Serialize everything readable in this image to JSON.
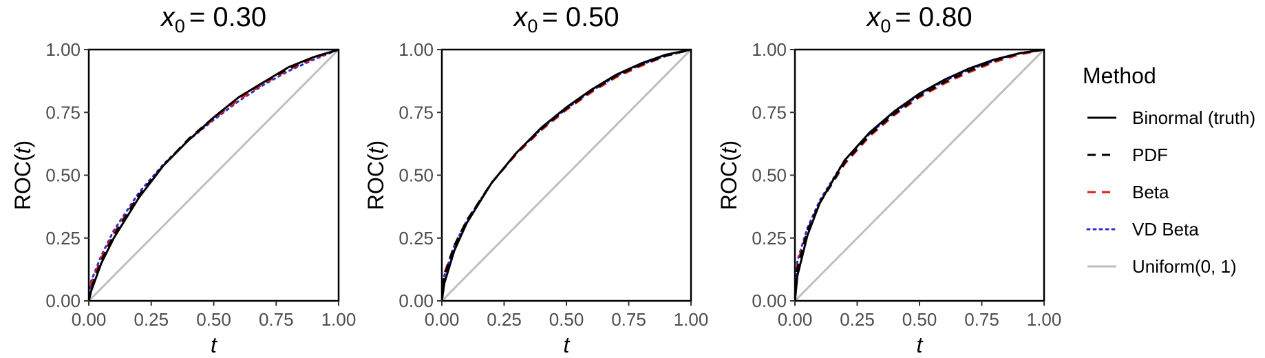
{
  "chart_data": [
    {
      "type": "line",
      "title_var": "x",
      "title_sub": "0",
      "title_value": "= 0.30",
      "xlabel": "t",
      "ylabel_prefix": "ROC(",
      "ylabel_var": "t",
      "ylabel_suffix": ")",
      "xlim": [
        0,
        1
      ],
      "ylim": [
        0,
        1
      ],
      "xticks": [
        "0.00",
        "0.25",
        "0.50",
        "0.75",
        "1.00"
      ],
      "yticks": [
        "0.00",
        "0.25",
        "0.50",
        "0.75",
        "1.00"
      ],
      "grid": false,
      "x": [
        0,
        0.01,
        0.05,
        0.1,
        0.2,
        0.3,
        0.4,
        0.5,
        0.6,
        0.7,
        0.8,
        0.9,
        1.0
      ],
      "series": [
        {
          "name": "Binormal (truth)",
          "values": [
            0,
            0.04,
            0.15,
            0.25,
            0.41,
            0.54,
            0.64,
            0.73,
            0.81,
            0.87,
            0.93,
            0.97,
            1.0
          ]
        },
        {
          "name": "PDF",
          "values": [
            0,
            0.05,
            0.16,
            0.26,
            0.42,
            0.54,
            0.645,
            0.73,
            0.81,
            0.87,
            0.925,
            0.97,
            1.0
          ]
        },
        {
          "name": "Beta",
          "values": [
            0,
            0.07,
            0.17,
            0.27,
            0.42,
            0.54,
            0.64,
            0.725,
            0.8,
            0.865,
            0.92,
            0.965,
            1.0
          ]
        },
        {
          "name": "VD Beta",
          "values": [
            0,
            0.08,
            0.18,
            0.28,
            0.43,
            0.545,
            0.64,
            0.72,
            0.795,
            0.86,
            0.915,
            0.96,
            1.0
          ]
        },
        {
          "name": "Uniform(0, 1)",
          "values": [
            0,
            0.01,
            0.05,
            0.1,
            0.2,
            0.3,
            0.4,
            0.5,
            0.6,
            0.7,
            0.8,
            0.9,
            1.0
          ]
        }
      ]
    },
    {
      "type": "line",
      "title_var": "x",
      "title_sub": "0",
      "title_value": "= 0.50",
      "xlabel": "t",
      "ylabel_prefix": "ROC(",
      "ylabel_var": "t",
      "ylabel_suffix": ")",
      "xlim": [
        0,
        1
      ],
      "ylim": [
        0,
        1
      ],
      "xticks": [
        "0.00",
        "0.25",
        "0.50",
        "0.75",
        "1.00"
      ],
      "yticks": [
        "0.00",
        "0.25",
        "0.50",
        "0.75",
        "1.00"
      ],
      "grid": false,
      "x": [
        0,
        0.01,
        0.05,
        0.1,
        0.2,
        0.3,
        0.4,
        0.5,
        0.6,
        0.7,
        0.8,
        0.9,
        1.0
      ],
      "series": [
        {
          "name": "Binormal (truth)",
          "values": [
            0,
            0.07,
            0.2,
            0.31,
            0.47,
            0.59,
            0.69,
            0.77,
            0.84,
            0.9,
            0.945,
            0.98,
            1.0
          ]
        },
        {
          "name": "PDF",
          "values": [
            0,
            0.1,
            0.22,
            0.32,
            0.47,
            0.59,
            0.685,
            0.765,
            0.835,
            0.895,
            0.94,
            0.975,
            1.0
          ]
        },
        {
          "name": "Beta",
          "values": [
            0,
            0.11,
            0.22,
            0.32,
            0.47,
            0.585,
            0.68,
            0.76,
            0.83,
            0.89,
            0.935,
            0.975,
            1.0
          ]
        },
        {
          "name": "VD Beta",
          "values": [
            0,
            0.1,
            0.22,
            0.32,
            0.47,
            0.59,
            0.685,
            0.765,
            0.835,
            0.895,
            0.94,
            0.975,
            1.0
          ]
        },
        {
          "name": "Uniform(0, 1)",
          "values": [
            0,
            0.01,
            0.05,
            0.1,
            0.2,
            0.3,
            0.4,
            0.5,
            0.6,
            0.7,
            0.8,
            0.9,
            1.0
          ]
        }
      ]
    },
    {
      "type": "line",
      "title_var": "x",
      "title_sub": "0",
      "title_value": "= 0.80",
      "xlabel": "t",
      "ylabel_prefix": "ROC(",
      "ylabel_var": "t",
      "ylabel_suffix": ")",
      "xlim": [
        0,
        1
      ],
      "ylim": [
        0,
        1
      ],
      "xticks": [
        "0.00",
        "0.25",
        "0.50",
        "0.75",
        "1.00"
      ],
      "yticks": [
        "0.00",
        "0.25",
        "0.50",
        "0.75",
        "1.00"
      ],
      "grid": false,
      "x": [
        0,
        0.01,
        0.05,
        0.1,
        0.2,
        0.3,
        0.4,
        0.5,
        0.6,
        0.7,
        0.8,
        0.9,
        1.0
      ],
      "series": [
        {
          "name": "Binormal (truth)",
          "values": [
            0,
            0.1,
            0.26,
            0.39,
            0.56,
            0.67,
            0.755,
            0.825,
            0.88,
            0.925,
            0.96,
            0.985,
            1.0
          ]
        },
        {
          "name": "PDF",
          "values": [
            0,
            0.13,
            0.28,
            0.39,
            0.55,
            0.66,
            0.745,
            0.815,
            0.87,
            0.915,
            0.955,
            0.985,
            1.0
          ]
        },
        {
          "name": "Beta",
          "values": [
            0,
            0.15,
            0.28,
            0.39,
            0.545,
            0.655,
            0.74,
            0.81,
            0.865,
            0.91,
            0.95,
            0.98,
            1.0
          ]
        },
        {
          "name": "VD Beta",
          "values": [
            0,
            0.16,
            0.29,
            0.4,
            0.56,
            0.665,
            0.75,
            0.82,
            0.875,
            0.92,
            0.955,
            0.985,
            1.0
          ]
        },
        {
          "name": "Uniform(0, 1)",
          "values": [
            0,
            0.01,
            0.05,
            0.1,
            0.2,
            0.3,
            0.4,
            0.5,
            0.6,
            0.7,
            0.8,
            0.9,
            1.0
          ]
        }
      ]
    }
  ],
  "legend": {
    "title": "Method",
    "placement": "right",
    "items": [
      {
        "label": "Binormal (truth)",
        "color": "#000000",
        "style": "solid"
      },
      {
        "label": "PDF",
        "color": "#000000",
        "style": "dashed"
      },
      {
        "label": "Beta",
        "color": "#e41a1c",
        "style": "dashed"
      },
      {
        "label": "VD Beta",
        "color": "#2b2bd6",
        "style": "dotted"
      },
      {
        "label": "Uniform(0, 1)",
        "color": "#bebebe",
        "style": "solid"
      }
    ]
  }
}
